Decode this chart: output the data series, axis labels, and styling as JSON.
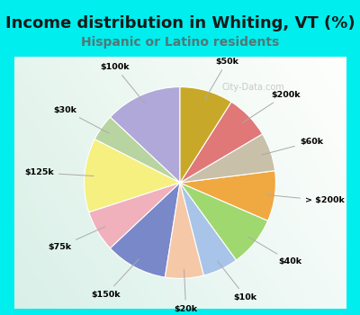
{
  "title": "Income distribution in Whiting, VT (%)",
  "subtitle": "Hispanic or Latino residents",
  "labels": [
    "$100k",
    "$30k",
    "$125k",
    "$75k",
    "$150k",
    "$20k",
    "$10k",
    "$40k",
    "> $200k",
    "$60k",
    "$200k",
    "$50k"
  ],
  "values": [
    13.0,
    4.5,
    12.5,
    7.0,
    10.5,
    6.5,
    6.0,
    8.5,
    8.5,
    6.5,
    7.5,
    9.0
  ],
  "colors": [
    "#b0a8d8",
    "#b8d4a0",
    "#f5f080",
    "#f0b0bc",
    "#7888c8",
    "#f5c8a8",
    "#a8c4e8",
    "#a0d870",
    "#f0a840",
    "#c8c0a8",
    "#e07878",
    "#c8a828"
  ],
  "outer_bg": "#00eeee",
  "inner_bg_color": "#d8f0e8",
  "title_color": "#1a1a1a",
  "subtitle_color": "#507878",
  "title_fontsize": 13,
  "subtitle_fontsize": 10,
  "watermark": "City-Data.com"
}
